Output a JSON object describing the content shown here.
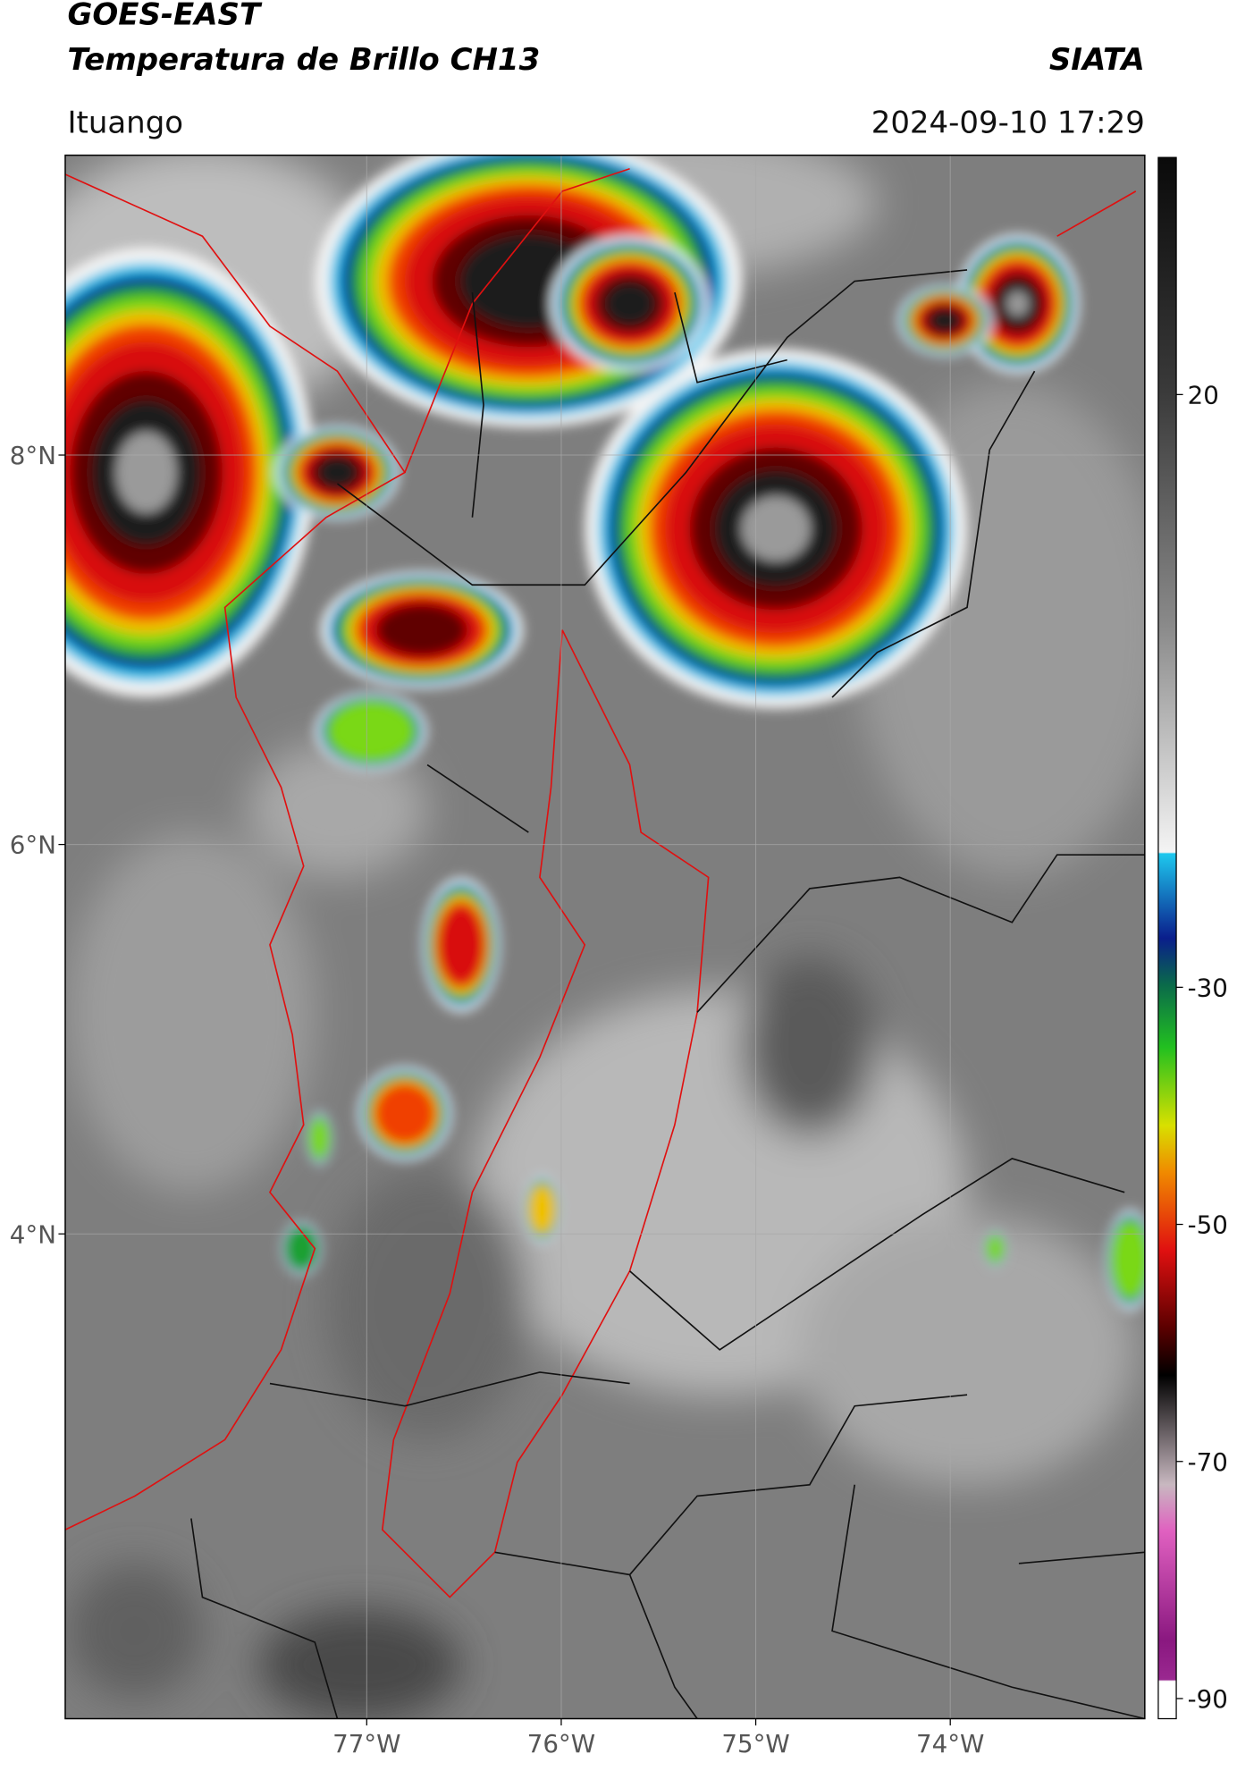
{
  "header": {
    "title": "GOES-EAST",
    "subtitle": "Temperatura de Brillo CH13",
    "source": "SIATA",
    "location": "Ituango",
    "timestamp": "2024-09-10 17:29"
  },
  "map": {
    "lonlim": [
      -78.55,
      -73.0
    ],
    "latlim": [
      1.51,
      9.54
    ],
    "grid": true,
    "lonticks": [
      {
        "value": -77,
        "label": "77°W"
      },
      {
        "value": -76,
        "label": "76°W"
      },
      {
        "value": -75,
        "label": "75°W"
      },
      {
        "value": -74,
        "label": "74°W"
      }
    ],
    "latticks": [
      {
        "value": 8,
        "label": "8°N"
      },
      {
        "value": 6,
        "label": "6°N"
      },
      {
        "value": 4,
        "label": "4°N"
      }
    ]
  },
  "colorbar": {
    "lim": [
      -91.7,
      40
    ],
    "ticks": [
      20,
      -30,
      -50,
      -70,
      -90
    ]
  }
}
